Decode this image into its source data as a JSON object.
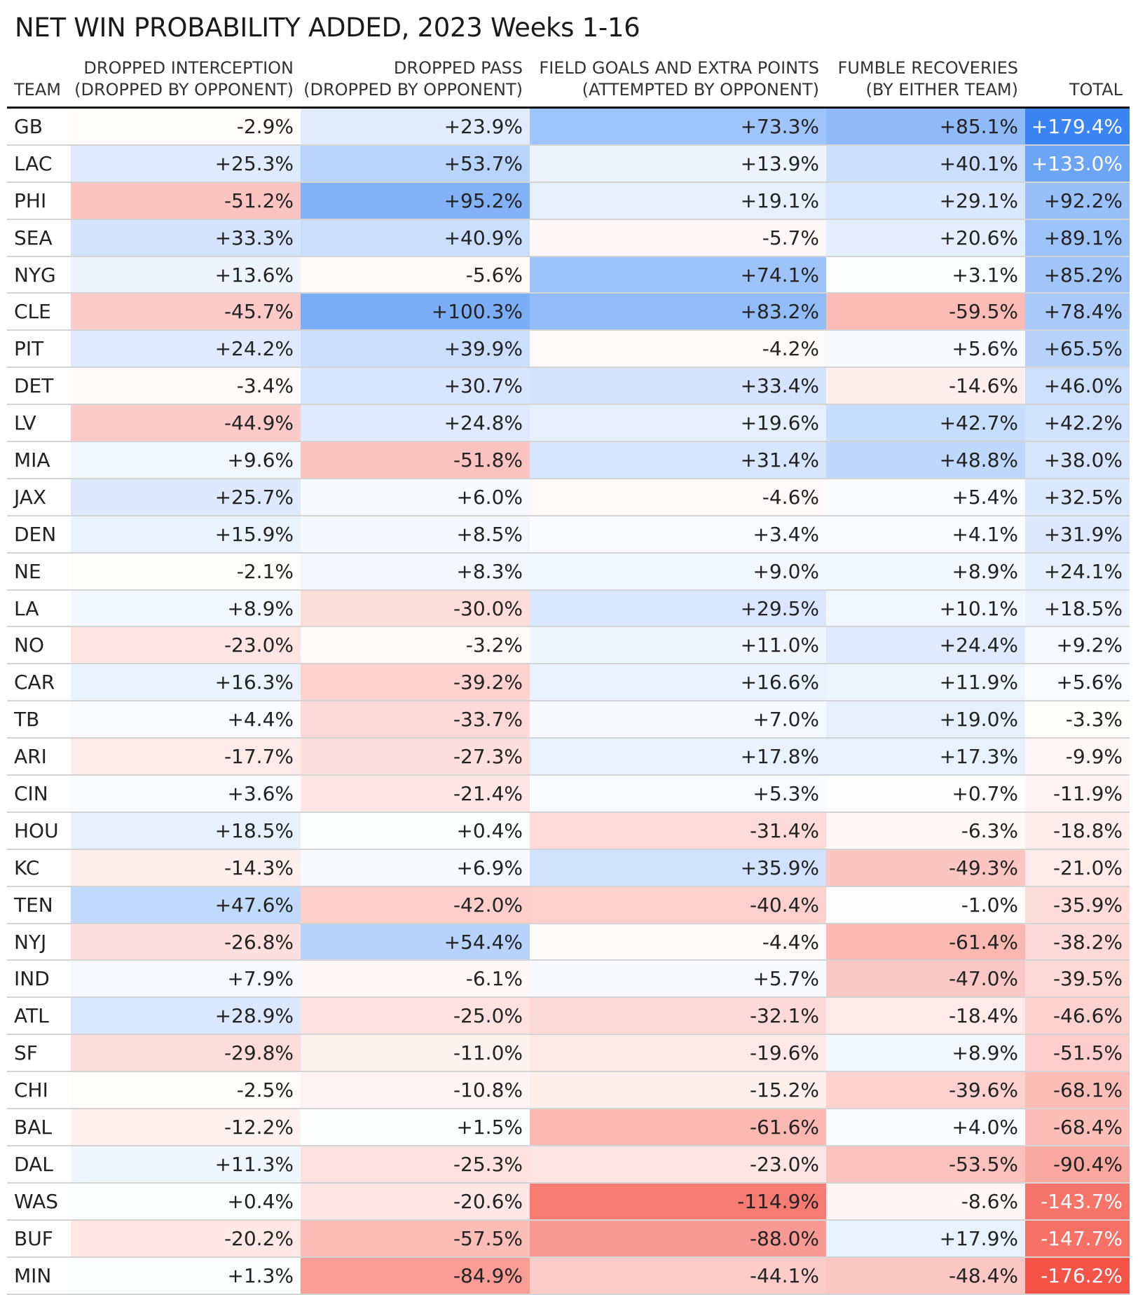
{
  "chart_data": {
    "type": "table",
    "title": "NET WIN PROBABILITY ADDED, 2023 Weeks 1-16",
    "columns": [
      {
        "key": "team",
        "line1": "",
        "line2": "TEAM"
      },
      {
        "key": "dropped_int",
        "line1": "DROPPED INTERCEPTION",
        "line2": "(DROPPED BY OPPONENT)"
      },
      {
        "key": "dropped_pass",
        "line1": "DROPPED PASS",
        "line2": "(DROPPED BY OPPONENT)"
      },
      {
        "key": "fg_xp",
        "line1": "FIELD GOALS AND EXTRA POINTS",
        "line2": "(ATTEMPTED BY OPPONENT)"
      },
      {
        "key": "fumble_rec",
        "line1": "FUMBLE RECOVERIES",
        "line2": "(BY EITHER TEAM)"
      },
      {
        "key": "total",
        "line1": "",
        "line2": "TOTAL"
      }
    ],
    "color_scale": {
      "positive": "#2e7ef2",
      "negative": "#f3473a",
      "neutral": "#ffffff"
    },
    "rows": [
      {
        "team": "GB",
        "values": [
          -2.9,
          23.9,
          73.3,
          85.1,
          179.4
        ]
      },
      {
        "team": "LAC",
        "values": [
          25.3,
          53.7,
          13.9,
          40.1,
          133.0
        ]
      },
      {
        "team": "PHI",
        "values": [
          -51.2,
          95.2,
          19.1,
          29.1,
          92.2
        ]
      },
      {
        "team": "SEA",
        "values": [
          33.3,
          40.9,
          -5.7,
          20.6,
          89.1
        ]
      },
      {
        "team": "NYG",
        "values": [
          13.6,
          -5.6,
          74.1,
          3.1,
          85.2
        ]
      },
      {
        "team": "CLE",
        "values": [
          -45.7,
          100.3,
          83.2,
          -59.5,
          78.4
        ]
      },
      {
        "team": "PIT",
        "values": [
          24.2,
          39.9,
          -4.2,
          5.6,
          65.5
        ]
      },
      {
        "team": "DET",
        "values": [
          -3.4,
          30.7,
          33.4,
          -14.6,
          46.0
        ]
      },
      {
        "team": "LV",
        "values": [
          -44.9,
          24.8,
          19.6,
          42.7,
          42.2
        ]
      },
      {
        "team": "MIA",
        "values": [
          9.6,
          -51.8,
          31.4,
          48.8,
          38.0
        ]
      },
      {
        "team": "JAX",
        "values": [
          25.7,
          6.0,
          -4.6,
          5.4,
          32.5
        ]
      },
      {
        "team": "DEN",
        "values": [
          15.9,
          8.5,
          3.4,
          4.1,
          31.9
        ]
      },
      {
        "team": "NE",
        "values": [
          -2.1,
          8.3,
          9.0,
          8.9,
          24.1
        ]
      },
      {
        "team": "LA",
        "values": [
          8.9,
          -30.0,
          29.5,
          10.1,
          18.5
        ]
      },
      {
        "team": "NO",
        "values": [
          -23.0,
          -3.2,
          11.0,
          24.4,
          9.2
        ]
      },
      {
        "team": "CAR",
        "values": [
          16.3,
          -39.2,
          16.6,
          11.9,
          5.6
        ]
      },
      {
        "team": "TB",
        "values": [
          4.4,
          -33.7,
          7.0,
          19.0,
          -3.3
        ]
      },
      {
        "team": "ARI",
        "values": [
          -17.7,
          -27.3,
          17.8,
          17.3,
          -9.9
        ]
      },
      {
        "team": "CIN",
        "values": [
          3.6,
          -21.4,
          5.3,
          0.7,
          -11.9
        ]
      },
      {
        "team": "HOU",
        "values": [
          18.5,
          0.4,
          -31.4,
          -6.3,
          -18.8
        ]
      },
      {
        "team": "KC",
        "values": [
          -14.3,
          6.9,
          35.9,
          -49.3,
          -21.0
        ]
      },
      {
        "team": "TEN",
        "values": [
          47.6,
          -42.0,
          -40.4,
          -1.0,
          -35.9
        ]
      },
      {
        "team": "NYJ",
        "values": [
          -26.8,
          54.4,
          -4.4,
          -61.4,
          -38.2
        ]
      },
      {
        "team": "IND",
        "values": [
          7.9,
          -6.1,
          5.7,
          -47.0,
          -39.5
        ]
      },
      {
        "team": "ATL",
        "values": [
          28.9,
          -25.0,
          -32.1,
          -18.4,
          -46.6
        ]
      },
      {
        "team": "SF",
        "values": [
          -29.8,
          -11.0,
          -19.6,
          8.9,
          -51.5
        ]
      },
      {
        "team": "CHI",
        "values": [
          -2.5,
          -10.8,
          -15.2,
          -39.6,
          -68.1
        ]
      },
      {
        "team": "BAL",
        "values": [
          -12.2,
          1.5,
          -61.6,
          4.0,
          -68.4
        ]
      },
      {
        "team": "DAL",
        "values": [
          11.3,
          -25.3,
          -23.0,
          -53.5,
          -90.4
        ]
      },
      {
        "team": "WAS",
        "values": [
          0.4,
          -20.6,
          -114.9,
          -8.6,
          -143.7
        ]
      },
      {
        "team": "BUF",
        "values": [
          -20.2,
          -57.5,
          -88.0,
          17.9,
          -147.7
        ]
      },
      {
        "team": "MIN",
        "values": [
          1.3,
          -84.9,
          -44.1,
          -48.4,
          -176.2
        ]
      }
    ]
  }
}
